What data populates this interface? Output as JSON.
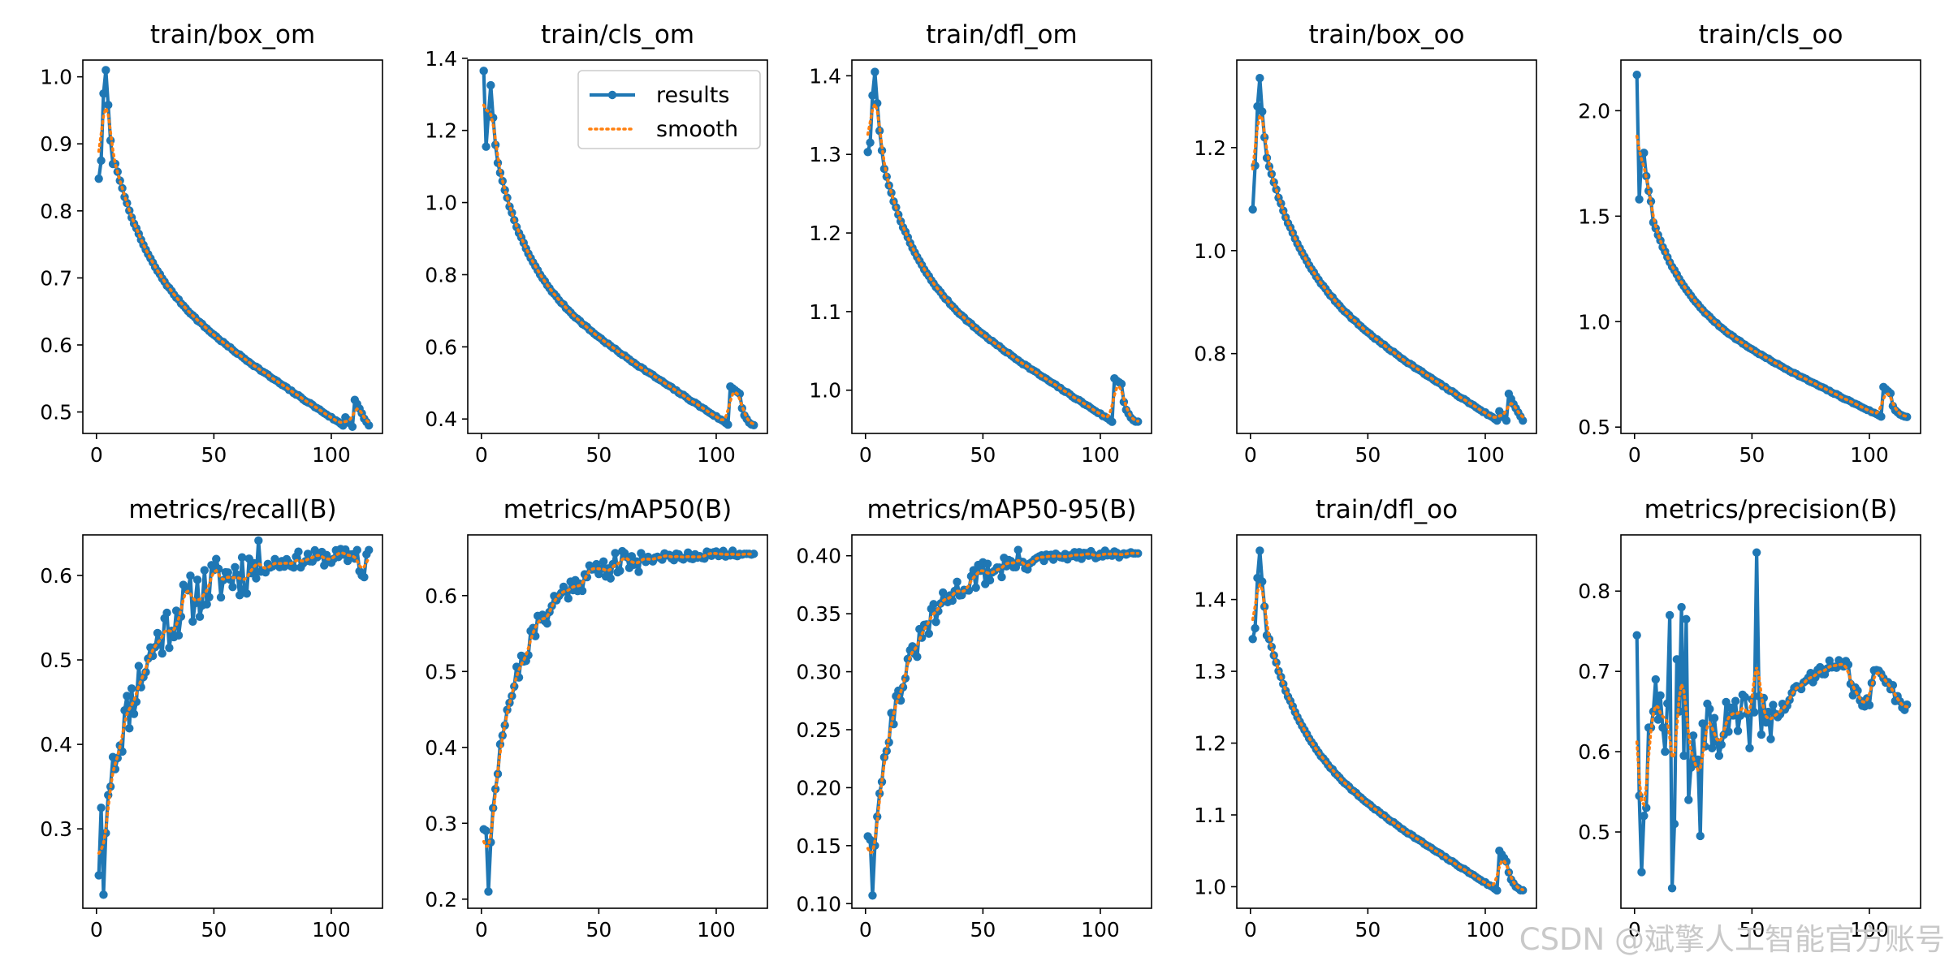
{
  "colors": {
    "results": "#1f77b4",
    "smooth": "#ff7f0e",
    "axis": "#000000"
  },
  "watermark": "CSDN @斌擎人工智能官方账号",
  "chart_data": [
    {
      "type": "line",
      "title": "train/box_om",
      "ylim": [
        0.468,
        1.025
      ],
      "xlim": [
        -5.8,
        121.8
      ],
      "yticks": [
        0.5,
        0.6,
        0.7,
        0.8,
        0.9,
        1.0
      ],
      "ytick_labels": [
        "0.5",
        "0.6",
        "0.7",
        "0.8",
        "0.9",
        "1.0"
      ],
      "xticks": [
        0,
        50,
        100
      ],
      "xtick_labels": [
        "0",
        "50",
        "100"
      ],
      "shape": {
        "kind": "decay",
        "y0": 1.01,
        "y1": 0.48,
        "n": 116,
        "start": [
          0.848,
          0.875,
          0.975,
          1.01,
          0.958,
          0.905,
          0.87
        ],
        "end": [
          0.492,
          0.488,
          0.483,
          0.478,
          0.518,
          0.512,
          0.505,
          0.498,
          0.49,
          0.485,
          0.48
        ],
        "k": 3.2,
        "a": 0.13
      },
      "series": [
        {
          "name": "results",
          "style": "solid-markers"
        },
        {
          "name": "smooth",
          "style": "dotted"
        }
      ]
    },
    {
      "type": "line",
      "title": "train/cls_om",
      "ylim": [
        0.36,
        1.395
      ],
      "xlim": [
        -5.8,
        121.8
      ],
      "yticks": [
        0.4,
        0.6,
        0.8,
        1.0,
        1.2,
        1.4
      ],
      "ytick_labels": [
        "0.4",
        "0.6",
        "0.8",
        "1.0",
        "1.2",
        "1.4"
      ],
      "xticks": [
        0,
        50,
        100
      ],
      "xtick_labels": [
        "0",
        "50",
        "100"
      ],
      "shape": {
        "kind": "decay",
        "y0": 1.36,
        "y1": 0.385,
        "n": 116,
        "start": [
          1.365,
          1.155,
          1.245,
          1.325,
          1.235,
          1.16,
          1.11
        ],
        "end": [
          0.49,
          0.485,
          0.48,
          0.475,
          0.47,
          0.43,
          0.41,
          0.4,
          0.39,
          0.385,
          0.383
        ],
        "k": 3.6,
        "a": 0.22
      },
      "legend": {
        "entries": [
          "results",
          "smooth"
        ],
        "position": "upper right"
      },
      "series": [
        {
          "name": "results",
          "style": "solid-markers"
        },
        {
          "name": "smooth",
          "style": "dotted"
        }
      ]
    },
    {
      "type": "line",
      "title": "train/dfl_om",
      "ylim": [
        0.945,
        1.42
      ],
      "xlim": [
        -5.8,
        121.8
      ],
      "yticks": [
        1.0,
        1.1,
        1.2,
        1.3,
        1.4
      ],
      "ytick_labels": [
        "1.0",
        "1.1",
        "1.2",
        "1.3",
        "1.4"
      ],
      "xticks": [
        0,
        50,
        100
      ],
      "xtick_labels": [
        "0",
        "50",
        "100"
      ],
      "shape": {
        "kind": "decay",
        "y0": 1.4,
        "y1": 0.96,
        "n": 116,
        "start": [
          1.303,
          1.315,
          1.375,
          1.405,
          1.365,
          1.33,
          1.305
        ],
        "end": [
          1.015,
          1.012,
          1.01,
          1.008,
          0.985,
          0.975,
          0.97,
          0.965,
          0.962,
          0.96,
          0.96
        ],
        "k": 3.3,
        "a": 0.17
      },
      "series": [
        {
          "name": "results",
          "style": "solid-markers"
        },
        {
          "name": "smooth",
          "style": "dotted"
        }
      ]
    },
    {
      "type": "line",
      "title": "train/box_oo",
      "ylim": [
        0.645,
        1.37
      ],
      "xlim": [
        -5.8,
        121.8
      ],
      "yticks": [
        0.8,
        1.0,
        1.2
      ],
      "ytick_labels": [
        "0.8",
        "1.0",
        "1.2"
      ],
      "xticks": [
        0,
        50,
        100
      ],
      "xtick_labels": [
        "0",
        "50",
        "100"
      ],
      "shape": {
        "kind": "decay",
        "y0": 1.33,
        "y1": 0.67,
        "n": 116,
        "start": [
          1.08,
          1.165,
          1.28,
          1.335,
          1.27,
          1.22,
          1.18
        ],
        "end": [
          0.688,
          0.682,
          0.676,
          0.67,
          0.722,
          0.712,
          0.702,
          0.694,
          0.686,
          0.678,
          0.67
        ],
        "k": 3.0,
        "a": 0.14
      },
      "series": [
        {
          "name": "results",
          "style": "solid-markers"
        },
        {
          "name": "smooth",
          "style": "dotted"
        }
      ]
    },
    {
      "type": "line",
      "title": "train/cls_oo",
      "ylim": [
        0.47,
        2.24
      ],
      "xlim": [
        -5.8,
        121.8
      ],
      "yticks": [
        0.5,
        1.0,
        1.5,
        2.0
      ],
      "ytick_labels": [
        "0.5",
        "1.0",
        "1.5",
        "2.0"
      ],
      "xticks": [
        0,
        50,
        100
      ],
      "xtick_labels": [
        "0",
        "50",
        "100"
      ],
      "shape": {
        "kind": "decay",
        "y0": 1.8,
        "y1": 0.55,
        "n": 116,
        "start": [
          2.17,
          1.58,
          1.78,
          1.8,
          1.69,
          1.62,
          1.57
        ],
        "end": [
          0.69,
          0.68,
          0.67,
          0.66,
          0.6,
          0.58,
          0.57,
          0.56,
          0.555,
          0.55,
          0.548
        ],
        "k": 3.2,
        "a": 0.3
      },
      "series": [
        {
          "name": "results",
          "style": "solid-markers"
        },
        {
          "name": "smooth",
          "style": "dotted"
        }
      ]
    },
    {
      "type": "line",
      "title": "metrics/recall(B)",
      "ylim": [
        0.206,
        0.648
      ],
      "xlim": [
        -5.8,
        121.8
      ],
      "yticks": [
        0.3,
        0.4,
        0.5,
        0.6
      ],
      "ytick_labels": [
        "0.3",
        "0.4",
        "0.5",
        "0.6"
      ],
      "xticks": [
        0,
        50,
        100
      ],
      "xtick_labels": [
        "0",
        "50",
        "100"
      ],
      "shape": {
        "kind": "growth",
        "y0": 0.28,
        "y1": 0.625,
        "n": 116,
        "start": [
          0.245,
          0.325,
          0.222,
          0.295,
          0.34,
          0.35,
          0.385
        ],
        "end": [
          0.625,
          0.62,
          0.63,
          0.605,
          0.6,
          0.598,
          0.625,
          0.63
        ],
        "k": 3.6,
        "noise": 0.022,
        "seed": 11
      },
      "series": [
        {
          "name": "results",
          "style": "solid-markers"
        },
        {
          "name": "smooth",
          "style": "dotted"
        }
      ]
    },
    {
      "type": "line",
      "title": "metrics/mAP50(B)",
      "ylim": [
        0.188,
        0.68
      ],
      "xlim": [
        -5.8,
        121.8
      ],
      "yticks": [
        0.2,
        0.3,
        0.4,
        0.5,
        0.6
      ],
      "ytick_labels": [
        "0.2",
        "0.3",
        "0.4",
        "0.5",
        "0.6"
      ],
      "xticks": [
        0,
        50,
        100
      ],
      "xtick_labels": [
        "0",
        "50",
        "100"
      ],
      "shape": {
        "kind": "growth",
        "y0": 0.27,
        "y1": 0.655,
        "n": 116,
        "start": [
          0.292,
          0.29,
          0.21,
          0.275,
          0.32,
          0.345,
          0.365
        ],
        "end": [
          0.652,
          0.655,
          0.654,
          0.655,
          0.655,
          0.655,
          0.654,
          0.655
        ],
        "k": 4.5,
        "noise": 0.012,
        "seed": 21
      },
      "series": [
        {
          "name": "results",
          "style": "solid-markers"
        },
        {
          "name": "smooth",
          "style": "dotted"
        }
      ]
    },
    {
      "type": "line",
      "title": "metrics/mAP50-95(B)",
      "ylim": [
        0.096,
        0.418
      ],
      "xlim": [
        -5.8,
        121.8
      ],
      "yticks": [
        0.1,
        0.15,
        0.2,
        0.25,
        0.3,
        0.35,
        0.4
      ],
      "ytick_labels": [
        "0.10",
        "0.15",
        "0.20",
        "0.25",
        "0.30",
        "0.35",
        "0.40"
      ],
      "xticks": [
        0,
        50,
        100
      ],
      "xtick_labels": [
        "0",
        "50",
        "100"
      ],
      "shape": {
        "kind": "growth",
        "y0": 0.14,
        "y1": 0.402,
        "n": 116,
        "start": [
          0.158,
          0.155,
          0.107,
          0.15,
          0.175,
          0.195,
          0.205
        ],
        "end": [
          0.401,
          0.402,
          0.401,
          0.402,
          0.403,
          0.402,
          0.402,
          0.402
        ],
        "k": 4.2,
        "noise": 0.008,
        "seed": 31
      },
      "series": [
        {
          "name": "results",
          "style": "solid-markers"
        },
        {
          "name": "smooth",
          "style": "dotted"
        }
      ]
    },
    {
      "type": "line",
      "title": "train/dfl_oo",
      "ylim": [
        0.97,
        1.49
      ],
      "xlim": [
        -5.8,
        121.8
      ],
      "yticks": [
        1.0,
        1.1,
        1.2,
        1.3,
        1.4
      ],
      "ytick_labels": [
        "1.0",
        "1.1",
        "1.2",
        "1.3",
        "1.4"
      ],
      "xticks": [
        0,
        50,
        100
      ],
      "xtick_labels": [
        "0",
        "50",
        "100"
      ],
      "shape": {
        "kind": "decay",
        "y0": 1.47,
        "y1": 0.995,
        "n": 116,
        "start": [
          1.345,
          1.36,
          1.43,
          1.468,
          1.425,
          1.39,
          1.35
        ],
        "end": [
          1.05,
          1.045,
          1.04,
          1.035,
          1.02,
          1.01,
          1.005,
          1.0,
          0.998,
          0.995,
          0.995
        ],
        "k": 3.2,
        "a": 0.2
      },
      "series": [
        {
          "name": "results",
          "style": "solid-markers"
        },
        {
          "name": "smooth",
          "style": "dotted"
        }
      ]
    },
    {
      "type": "line",
      "title": "metrics/precision(B)",
      "ylim": [
        0.405,
        0.87
      ],
      "xlim": [
        -5.8,
        121.8
      ],
      "yticks": [
        0.5,
        0.6,
        0.7,
        0.8
      ],
      "ytick_labels": [
        "0.5",
        "0.6",
        "0.7",
        "0.8"
      ],
      "xticks": [
        0,
        50,
        100
      ],
      "xtick_labels": [
        "0",
        "50",
        "100"
      ],
      "shape": {
        "kind": "precision",
        "n": 116,
        "start": [
          0.745,
          0.545,
          0.45,
          0.52,
          0.53,
          0.63,
          0.63,
          0.65,
          0.69,
          0.64,
          0.67,
          0.63,
          0.6,
          0.66,
          0.77,
          0.43,
          0.51,
          0.715,
          0.65,
          0.78,
          0.595,
          0.765,
          0.54,
          0.58,
          0.62,
          0.585,
          0.59,
          0.495,
          0.635
        ],
        "spike": [
          52,
          0.848
        ],
        "seed": 41
      },
      "series": [
        {
          "name": "results",
          "style": "solid-markers"
        },
        {
          "name": "smooth",
          "style": "dotted"
        }
      ]
    }
  ]
}
